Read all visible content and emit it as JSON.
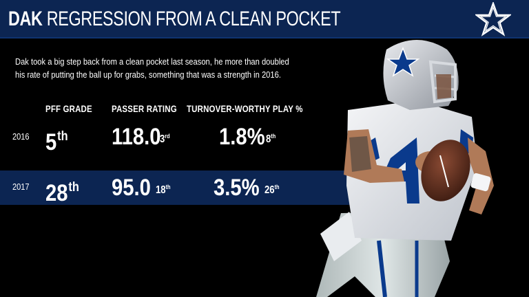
{
  "header": {
    "title_bold": "DAK",
    "title_rest": "REGRESSION FROM A CLEAN POCKET"
  },
  "intro": "Dak took a big step back from a clean pocket last season, he more than doubled his rate of putting the ball up for grabs, something that was a strength in 2016.",
  "columns": {
    "pff_grade": "PFF GRADE",
    "passer_rating": "PASSER RATING",
    "turnover": "TURNOVER-WORTHY PLAY %"
  },
  "rows": [
    {
      "year": "2016",
      "grade": "5",
      "grade_suffix": "th",
      "rating": "118.0",
      "rating_rank": "3",
      "rating_rank_suffix": "rd",
      "twp": "1.8%",
      "twp_rank": "8",
      "twp_rank_suffix": "th"
    },
    {
      "year": "2017",
      "grade": "28",
      "grade_suffix": "th",
      "rating": "95.0",
      "rating_rank": "18",
      "rating_rank_suffix": "th",
      "twp": "3.5%",
      "twp_rank": "26",
      "twp_rank_suffix": "th"
    }
  ],
  "colors": {
    "navy": "#0c2552",
    "background": "#000000",
    "text": "#ffffff",
    "jersey_blue": "#0a3a8c",
    "helmet_silver": "#c9ccd2"
  },
  "icons": {
    "logo": "cowboys-star-icon",
    "player": "quarterback-player-photo"
  }
}
